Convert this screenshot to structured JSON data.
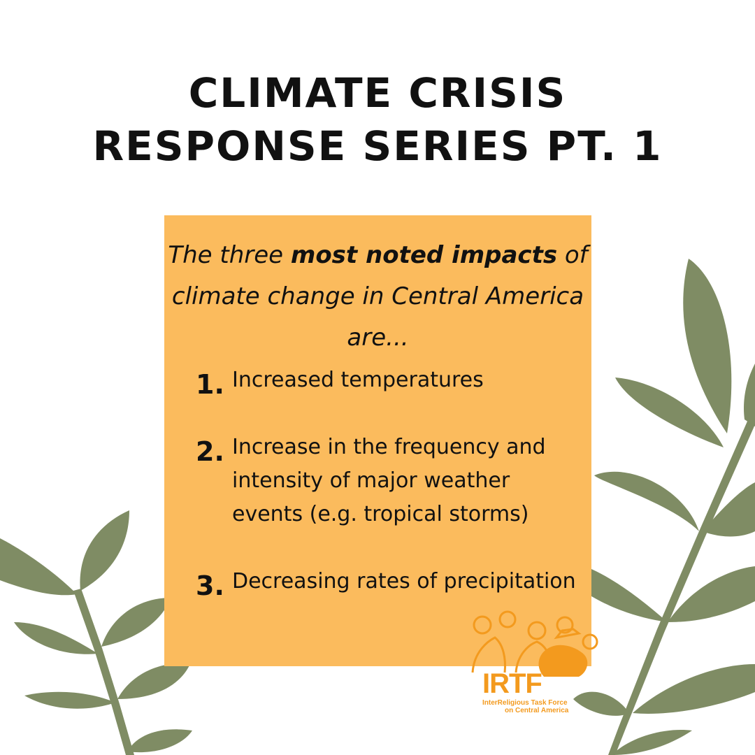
{
  "title": {
    "line1": "CLIMATE CRISIS",
    "line2": "RESPONSE SERIES PT. 1"
  },
  "card": {
    "intro_before": "The three ",
    "intro_bold": "most noted impacts",
    "intro_after": " of climate change in Central America are...",
    "items": [
      {
        "number": "1.",
        "text": "Increased temperatures"
      },
      {
        "number": "2.",
        "text": "Increase in the frequency and intensity of major weather events (e.g. tropical storms)"
      },
      {
        "number": "3.",
        "text": "Decreasing rates of precipitation"
      }
    ]
  },
  "logo": {
    "wordmark": "IRTF",
    "subtitle_line1": "InterReligious Task Force",
    "subtitle_line2": "on Central America"
  },
  "colors": {
    "card": "#fbbb5d",
    "leaf": "#7f8c64",
    "logo": "#f39a1e",
    "background": "#ffffff"
  }
}
